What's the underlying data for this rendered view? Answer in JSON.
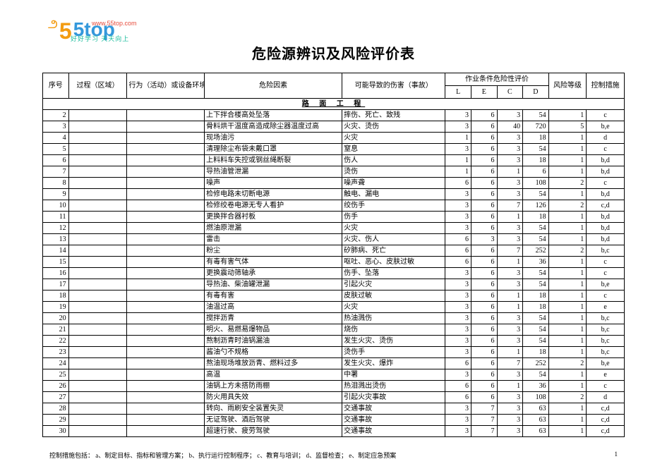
{
  "logo": {
    "swirl": "5",
    "brand": "5top",
    "url": "www.55top.com",
    "slogan": "好好学习   天天向上"
  },
  "title": "危险源辨识及风险评价表",
  "headers": {
    "seq": "序号",
    "proc": "过程（区域）",
    "act": "行为（活动）或设备环境",
    "risk": "危险因素",
    "harm": "可能导致的伤害（事故）",
    "eval_group": "作业条件危险性评价",
    "L": "L",
    "E": "E",
    "C": "C",
    "D": "D",
    "level": "风险等级",
    "ctrl": "控制措施"
  },
  "section": "路 面 工 程",
  "rows": [
    {
      "n": 2,
      "risk": "上下拌合楼高处坠落",
      "harm": "摔伤、死亡、致残",
      "L": 3,
      "E": 6,
      "C": 3,
      "D": 54,
      "lvl": 1,
      "ctrl": "c"
    },
    {
      "n": 3,
      "risk": "骨料烘干温度高造成除尘器温度过高",
      "harm": "火灾、烫伤",
      "L": 3,
      "E": 6,
      "C": 40,
      "D": 720,
      "lvl": 5,
      "ctrl": "b,e"
    },
    {
      "n": 4,
      "risk": "现场油污",
      "harm": "火灾",
      "L": 1,
      "E": 6,
      "C": 3,
      "D": 18,
      "lvl": 1,
      "ctrl": "d"
    },
    {
      "n": 5,
      "risk": "清理除尘布袋未戴口罩",
      "harm": "窒息",
      "L": 3,
      "E": 6,
      "C": 3,
      "D": 54,
      "lvl": 1,
      "ctrl": "c"
    },
    {
      "n": 6,
      "risk": "上料料车失控或钢丝绳断裂",
      "harm": "伤人",
      "L": 1,
      "E": 6,
      "C": 3,
      "D": 18,
      "lvl": 1,
      "ctrl": "b,d"
    },
    {
      "n": 7,
      "risk": "导热油管泄漏",
      "harm": "烫伤",
      "L": 1,
      "E": 6,
      "C": 1,
      "D": 6,
      "lvl": 1,
      "ctrl": "b,d"
    },
    {
      "n": 8,
      "risk": "噪声",
      "harm": "噪声聋",
      "L": 6,
      "E": 6,
      "C": 3,
      "D": 108,
      "lvl": 2,
      "ctrl": "c"
    },
    {
      "n": 9,
      "risk": "检修电路未切断电源",
      "harm": "触电、漏电",
      "L": 3,
      "E": 6,
      "C": 3,
      "D": 54,
      "lvl": 1,
      "ctrl": "b,d"
    },
    {
      "n": 10,
      "risk": "检修绞卷电源无专人看护",
      "harm": "绞伤手",
      "L": 3,
      "E": 6,
      "C": 7,
      "D": 126,
      "lvl": 2,
      "ctrl": "c,d"
    },
    {
      "n": 11,
      "risk": "更换拌合器衬板",
      "harm": "伤手",
      "L": 3,
      "E": 6,
      "C": 1,
      "D": 18,
      "lvl": 1,
      "ctrl": "b,d"
    },
    {
      "n": 12,
      "risk": "燃油原泄漏",
      "harm": "火灾",
      "L": 3,
      "E": 6,
      "C": 3,
      "D": 54,
      "lvl": 1,
      "ctrl": "b,d"
    },
    {
      "n": 13,
      "risk": "雷击",
      "harm": "火灾、伤人",
      "L": 6,
      "E": 3,
      "C": 3,
      "D": 54,
      "lvl": 1,
      "ctrl": "b,d"
    },
    {
      "n": 14,
      "risk": "粉尘",
      "harm": "矽肺病、死亡",
      "L": 6,
      "E": 6,
      "C": 7,
      "D": 252,
      "lvl": 2,
      "ctrl": "b,c"
    },
    {
      "n": 15,
      "risk": "有毒有害气体",
      "harm": "呕吐、恶心、皮肤过敏",
      "L": 6,
      "E": 6,
      "C": 1,
      "D": 36,
      "lvl": 1,
      "ctrl": "c"
    },
    {
      "n": 16,
      "risk": "更换震动筛轴承",
      "harm": "伤手、坠落",
      "L": 3,
      "E": 6,
      "C": 3,
      "D": 54,
      "lvl": 1,
      "ctrl": "c"
    },
    {
      "n": 17,
      "risk": "导热油、柴油罐泄漏",
      "harm": "引起火灾",
      "L": 3,
      "E": 6,
      "C": 3,
      "D": 54,
      "lvl": 1,
      "ctrl": "b,e"
    },
    {
      "n": 18,
      "risk": "有毒有害",
      "harm": "皮肤过敏",
      "L": 3,
      "E": 6,
      "C": 1,
      "D": 18,
      "lvl": 1,
      "ctrl": "c"
    },
    {
      "n": 19,
      "risk": "油温过高",
      "harm": "火灾",
      "L": 3,
      "E": 6,
      "C": 1,
      "D": 18,
      "lvl": 1,
      "ctrl": "e"
    },
    {
      "n": 20,
      "risk": "搅拌沥青",
      "harm": "热油溅伤",
      "L": 3,
      "E": 6,
      "C": 3,
      "D": 54,
      "lvl": 1,
      "ctrl": "b,c"
    },
    {
      "n": 21,
      "risk": "明火、易燃易爆物品",
      "harm": "烧伤",
      "L": 3,
      "E": 6,
      "C": 3,
      "D": 54,
      "lvl": 1,
      "ctrl": "b,c"
    },
    {
      "n": 22,
      "risk": "熬制沥青时油锅漏油",
      "harm": "发生火灾、烫伤",
      "L": 3,
      "E": 6,
      "C": 3,
      "D": 54,
      "lvl": 1,
      "ctrl": "b,c"
    },
    {
      "n": 23,
      "risk": "酱油勺不规格",
      "harm": "烫伤手",
      "L": 3,
      "E": 6,
      "C": 1,
      "D": 18,
      "lvl": 1,
      "ctrl": "b,c"
    },
    {
      "n": 24,
      "risk": "熬油现场堆放沥青、燃料过多",
      "harm": "发生火灾、爆炸",
      "L": 6,
      "E": 6,
      "C": 7,
      "D": 252,
      "lvl": 2,
      "ctrl": "b,e"
    },
    {
      "n": 25,
      "risk": "高温",
      "harm": "中署",
      "L": 3,
      "E": 6,
      "C": 3,
      "D": 54,
      "lvl": 1,
      "ctrl": "e"
    },
    {
      "n": 26,
      "risk": "油锅上方未搭防雨棚",
      "harm": "热泪溅出烫伤",
      "L": 6,
      "E": 6,
      "C": 1,
      "D": 36,
      "lvl": 1,
      "ctrl": "c"
    },
    {
      "n": 27,
      "risk": "防火用具失效",
      "harm": "引起火灾事故",
      "L": 6,
      "E": 6,
      "C": 3,
      "D": 108,
      "lvl": 2,
      "ctrl": "d"
    },
    {
      "n": 28,
      "risk": "转向、雨刷安全装置失灵",
      "harm": "交通事故",
      "L": 3,
      "E": 7,
      "C": 3,
      "D": 63,
      "lvl": 1,
      "ctrl": "c,d"
    },
    {
      "n": 29,
      "risk": "无证驾驶、酒后驾驶",
      "harm": "交通事故",
      "L": 3,
      "E": 7,
      "C": 3,
      "D": 63,
      "lvl": 1,
      "ctrl": "c,d"
    },
    {
      "n": 30,
      "risk": "超速行驶、疲劳驾驶",
      "harm": "交通事故",
      "L": 3,
      "E": 7,
      "C": 3,
      "D": 63,
      "lvl": 1,
      "ctrl": "c,d"
    }
  ],
  "footer": {
    "text": "控制措施包括：  a、制定目标、指标和管理方案；  b、执行运行控制程序；  c、教育与培训；  d、监督检查；    e、制定应急预案",
    "page": "1"
  },
  "style": {
    "page_bg": "#ffffff",
    "border_color": "#000000",
    "text_color": "#000000",
    "title_fontsize": 20,
    "cell_fontsize": 10,
    "footer_fontsize": 9,
    "logo_orange": "#f39c12",
    "logo_blue": "#3498db",
    "logo_red": "#e74c3c",
    "logo_green": "#1abc9c",
    "col_widths": {
      "seq": 30,
      "proc": 68,
      "act": 90,
      "risk": 160,
      "harm": 120,
      "lecd": 30,
      "level": 44,
      "ctrl": 44
    }
  }
}
